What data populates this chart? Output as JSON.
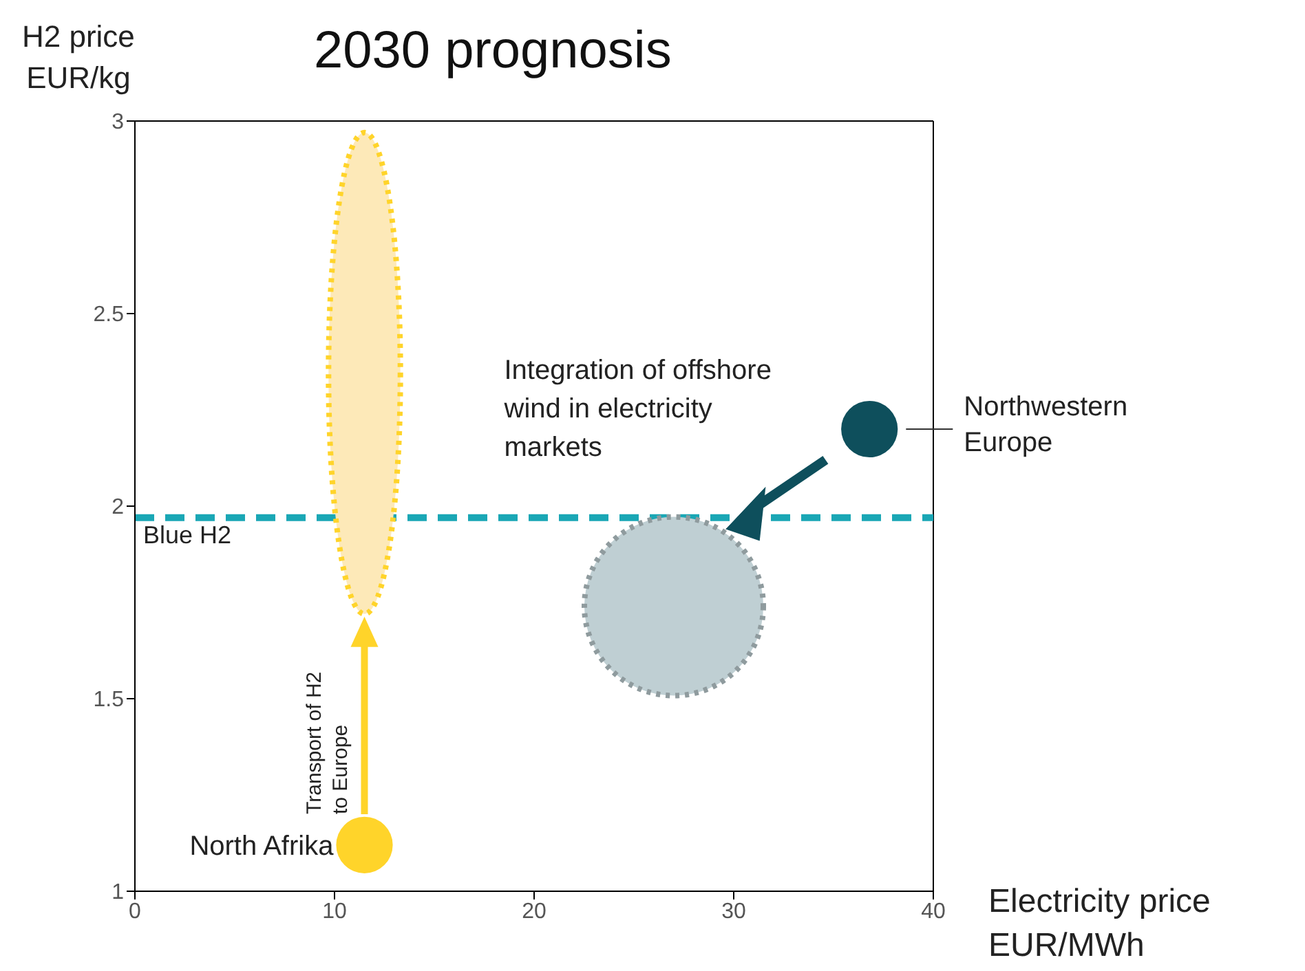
{
  "chart_data": {
    "type": "bubble",
    "title": "2030 prognosis",
    "xlabel": "Electricity price\nEUR/MWh",
    "ylabel": "H2 price\nEUR/kg",
    "annotations": [
      "Integration of offshore wind in electricity markets",
      "Transport of H2\nto Europe"
    ],
    "xlim": [
      0,
      40
    ],
    "xticks": [
      0,
      10,
      20,
      30,
      40
    ],
    "ylim": [
      1,
      3
    ],
    "yticks": [
      1,
      1.5,
      2,
      2.5,
      3
    ],
    "grid": false,
    "legend": false,
    "ref_lines": [
      {
        "axis": "y",
        "value": 1.97,
        "label": "Blue H2",
        "color": "#1aa7b5",
        "line_style": "dashed"
      }
    ],
    "series": [
      {
        "name": "North Afrika",
        "color": "#ffd42a",
        "x": [
          11.5
        ],
        "values": [
          1.12
        ],
        "sizes": [
          0.1
        ]
      },
      {
        "name": "Northwestern Europe",
        "color": "#0e4f5c",
        "x": [
          36.8
        ],
        "values": [
          2.2
        ],
        "sizes": [
          0.1
        ]
      },
      {
        "color": "#bfcfd3",
        "x": [
          27
        ],
        "values": [
          1.74
        ],
        "sizes": [
          1
        ]
      }
    ]
  }
}
